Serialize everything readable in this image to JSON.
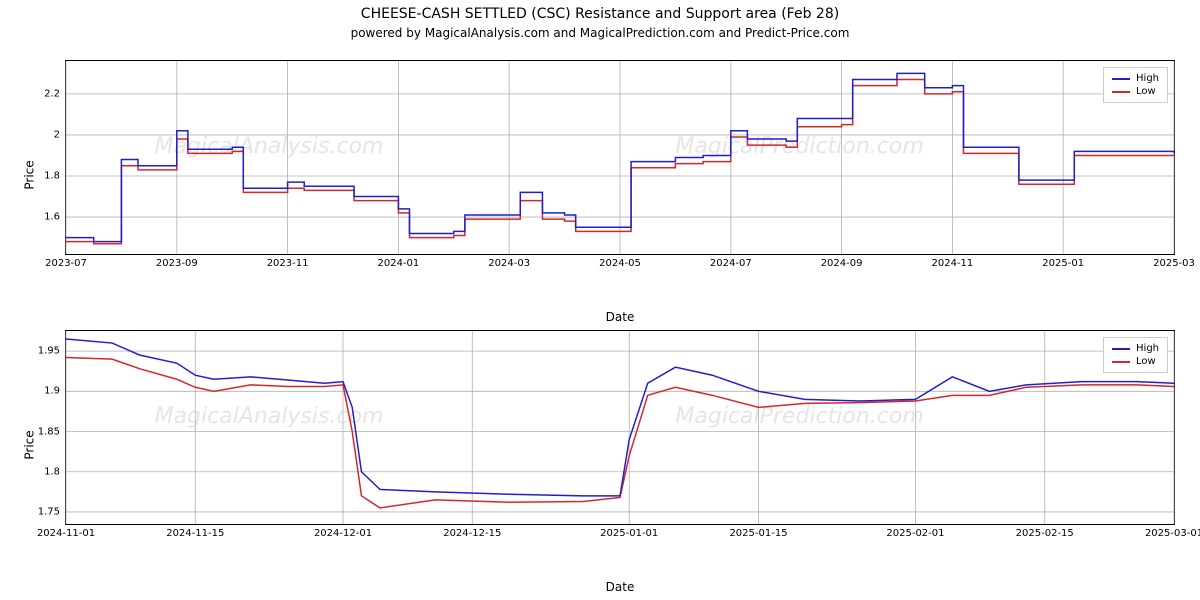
{
  "title": "CHEESE-CASH SETTLED (CSC) Resistance and Support area (Feb 28)",
  "subtitle": "powered by MagicalAnalysis.com and MagicalPrediction.com and Predict-Price.com",
  "colors": {
    "high": "#1f1fd1",
    "low": "#d62728",
    "grid": "#b0b0b0",
    "border": "#000000",
    "background": "#ffffff",
    "watermark": "#e5e5e5"
  },
  "legend": {
    "high": "High",
    "low": "Low"
  },
  "axis_labels": {
    "x": "Date",
    "y": "Price"
  },
  "watermarks": [
    "MagicalAnalysis.com",
    "MagicalPrediction.com"
  ],
  "chart1": {
    "type": "line-step",
    "x_ticks": [
      "2023-07",
      "2023-09",
      "2023-11",
      "2024-01",
      "2024-03",
      "2024-05",
      "2024-07",
      "2024-09",
      "2024-11",
      "2025-01",
      "2025-03"
    ],
    "x_tick_idx": [
      0,
      2,
      4,
      6,
      8,
      10,
      12,
      14,
      16,
      18,
      20
    ],
    "x_domain_months": 20,
    "y_ticks": [
      1.6,
      1.8,
      2.0,
      2.2
    ],
    "ylim": [
      1.42,
      2.36
    ],
    "series": {
      "high": [
        {
          "x": 0.0,
          "y": 1.5
        },
        {
          "x": 0.5,
          "y": 1.48
        },
        {
          "x": 1.0,
          "y": 1.88
        },
        {
          "x": 1.3,
          "y": 1.85
        },
        {
          "x": 1.7,
          "y": 1.85
        },
        {
          "x": 2.0,
          "y": 2.02
        },
        {
          "x": 2.2,
          "y": 1.93
        },
        {
          "x": 3.0,
          "y": 1.94
        },
        {
          "x": 3.2,
          "y": 1.74
        },
        {
          "x": 4.0,
          "y": 1.77
        },
        {
          "x": 4.3,
          "y": 1.75
        },
        {
          "x": 5.0,
          "y": 1.75
        },
        {
          "x": 5.2,
          "y": 1.7
        },
        {
          "x": 6.0,
          "y": 1.64
        },
        {
          "x": 6.2,
          "y": 1.52
        },
        {
          "x": 7.0,
          "y": 1.53
        },
        {
          "x": 7.2,
          "y": 1.61
        },
        {
          "x": 8.0,
          "y": 1.61
        },
        {
          "x": 8.2,
          "y": 1.72
        },
        {
          "x": 8.6,
          "y": 1.62
        },
        {
          "x": 9.0,
          "y": 1.61
        },
        {
          "x": 9.2,
          "y": 1.55
        },
        {
          "x": 10.0,
          "y": 1.55
        },
        {
          "x": 10.2,
          "y": 1.87
        },
        {
          "x": 11.0,
          "y": 1.89
        },
        {
          "x": 11.5,
          "y": 1.9
        },
        {
          "x": 12.0,
          "y": 2.02
        },
        {
          "x": 12.3,
          "y": 1.98
        },
        {
          "x": 13.0,
          "y": 1.97
        },
        {
          "x": 13.2,
          "y": 2.08
        },
        {
          "x": 14.0,
          "y": 2.08
        },
        {
          "x": 14.2,
          "y": 2.27
        },
        {
          "x": 15.0,
          "y": 2.3
        },
        {
          "x": 15.5,
          "y": 2.23
        },
        {
          "x": 16.0,
          "y": 2.24
        },
        {
          "x": 16.2,
          "y": 1.94
        },
        {
          "x": 17.0,
          "y": 1.94
        },
        {
          "x": 17.2,
          "y": 1.78
        },
        {
          "x": 18.0,
          "y": 1.78
        },
        {
          "x": 18.2,
          "y": 1.92
        },
        {
          "x": 20.0,
          "y": 1.91
        }
      ],
      "low": [
        {
          "x": 0.0,
          "y": 1.48
        },
        {
          "x": 0.5,
          "y": 1.47
        },
        {
          "x": 1.0,
          "y": 1.85
        },
        {
          "x": 1.3,
          "y": 1.83
        },
        {
          "x": 1.7,
          "y": 1.83
        },
        {
          "x": 2.0,
          "y": 1.98
        },
        {
          "x": 2.2,
          "y": 1.91
        },
        {
          "x": 3.0,
          "y": 1.92
        },
        {
          "x": 3.2,
          "y": 1.72
        },
        {
          "x": 4.0,
          "y": 1.74
        },
        {
          "x": 4.3,
          "y": 1.73
        },
        {
          "x": 5.0,
          "y": 1.73
        },
        {
          "x": 5.2,
          "y": 1.68
        },
        {
          "x": 6.0,
          "y": 1.62
        },
        {
          "x": 6.2,
          "y": 1.5
        },
        {
          "x": 7.0,
          "y": 1.51
        },
        {
          "x": 7.2,
          "y": 1.59
        },
        {
          "x": 8.0,
          "y": 1.59
        },
        {
          "x": 8.2,
          "y": 1.68
        },
        {
          "x": 8.6,
          "y": 1.59
        },
        {
          "x": 9.0,
          "y": 1.58
        },
        {
          "x": 9.2,
          "y": 1.53
        },
        {
          "x": 10.0,
          "y": 1.53
        },
        {
          "x": 10.2,
          "y": 1.84
        },
        {
          "x": 11.0,
          "y": 1.86
        },
        {
          "x": 11.5,
          "y": 1.87
        },
        {
          "x": 12.0,
          "y": 1.99
        },
        {
          "x": 12.3,
          "y": 1.95
        },
        {
          "x": 13.0,
          "y": 1.94
        },
        {
          "x": 13.2,
          "y": 2.04
        },
        {
          "x": 14.0,
          "y": 2.05
        },
        {
          "x": 14.2,
          "y": 2.24
        },
        {
          "x": 15.0,
          "y": 2.27
        },
        {
          "x": 15.5,
          "y": 2.2
        },
        {
          "x": 16.0,
          "y": 2.21
        },
        {
          "x": 16.2,
          "y": 1.91
        },
        {
          "x": 17.0,
          "y": 1.91
        },
        {
          "x": 17.2,
          "y": 1.76
        },
        {
          "x": 18.0,
          "y": 1.76
        },
        {
          "x": 18.2,
          "y": 1.9
        },
        {
          "x": 20.0,
          "y": 1.9
        }
      ]
    }
  },
  "chart2": {
    "type": "line",
    "x_ticks": [
      "2024-11-01",
      "2024-11-15",
      "2024-12-01",
      "2024-12-15",
      "2025-01-01",
      "2025-01-15",
      "2025-02-01",
      "2025-02-15",
      "2025-03-01"
    ],
    "x_tick_idx": [
      0,
      14,
      30,
      44,
      61,
      75,
      92,
      106,
      120
    ],
    "x_domain_days": 120,
    "y_ticks": [
      1.75,
      1.8,
      1.85,
      1.9,
      1.95
    ],
    "ylim": [
      1.735,
      1.975
    ],
    "series": {
      "high": [
        {
          "x": 0,
          "y": 1.965
        },
        {
          "x": 5,
          "y": 1.96
        },
        {
          "x": 8,
          "y": 1.945
        },
        {
          "x": 12,
          "y": 1.935
        },
        {
          "x": 14,
          "y": 1.92
        },
        {
          "x": 16,
          "y": 1.915
        },
        {
          "x": 20,
          "y": 1.918
        },
        {
          "x": 24,
          "y": 1.914
        },
        {
          "x": 28,
          "y": 1.91
        },
        {
          "x": 30,
          "y": 1.912
        },
        {
          "x": 31,
          "y": 1.88
        },
        {
          "x": 32,
          "y": 1.8
        },
        {
          "x": 34,
          "y": 1.778
        },
        {
          "x": 40,
          "y": 1.775
        },
        {
          "x": 48,
          "y": 1.772
        },
        {
          "x": 56,
          "y": 1.77
        },
        {
          "x": 60,
          "y": 1.77
        },
        {
          "x": 61,
          "y": 1.84
        },
        {
          "x": 63,
          "y": 1.91
        },
        {
          "x": 66,
          "y": 1.93
        },
        {
          "x": 70,
          "y": 1.92
        },
        {
          "x": 75,
          "y": 1.9
        },
        {
          "x": 80,
          "y": 1.89
        },
        {
          "x": 86,
          "y": 1.888
        },
        {
          "x": 92,
          "y": 1.89
        },
        {
          "x": 96,
          "y": 1.918
        },
        {
          "x": 100,
          "y": 1.9
        },
        {
          "x": 104,
          "y": 1.908
        },
        {
          "x": 110,
          "y": 1.912
        },
        {
          "x": 116,
          "y": 1.912
        },
        {
          "x": 120,
          "y": 1.91
        }
      ],
      "low": [
        {
          "x": 0,
          "y": 1.942
        },
        {
          "x": 5,
          "y": 1.94
        },
        {
          "x": 8,
          "y": 1.928
        },
        {
          "x": 12,
          "y": 1.915
        },
        {
          "x": 14,
          "y": 1.905
        },
        {
          "x": 16,
          "y": 1.9
        },
        {
          "x": 20,
          "y": 1.908
        },
        {
          "x": 24,
          "y": 1.906
        },
        {
          "x": 28,
          "y": 1.906
        },
        {
          "x": 30,
          "y": 1.908
        },
        {
          "x": 31,
          "y": 1.85
        },
        {
          "x": 32,
          "y": 1.77
        },
        {
          "x": 34,
          "y": 1.755
        },
        {
          "x": 40,
          "y": 1.765
        },
        {
          "x": 48,
          "y": 1.762
        },
        {
          "x": 56,
          "y": 1.763
        },
        {
          "x": 60,
          "y": 1.768
        },
        {
          "x": 61,
          "y": 1.82
        },
        {
          "x": 63,
          "y": 1.895
        },
        {
          "x": 66,
          "y": 1.905
        },
        {
          "x": 70,
          "y": 1.895
        },
        {
          "x": 75,
          "y": 1.88
        },
        {
          "x": 80,
          "y": 1.885
        },
        {
          "x": 86,
          "y": 1.886
        },
        {
          "x": 92,
          "y": 1.888
        },
        {
          "x": 96,
          "y": 1.895
        },
        {
          "x": 100,
          "y": 1.895
        },
        {
          "x": 104,
          "y": 1.905
        },
        {
          "x": 110,
          "y": 1.908
        },
        {
          "x": 116,
          "y": 1.908
        },
        {
          "x": 120,
          "y": 1.906
        }
      ]
    }
  },
  "typography": {
    "title_fontsize": 14,
    "subtitle_fontsize": 12,
    "axis_label_fontsize": 12,
    "tick_fontsize": 10,
    "legend_fontsize": 10,
    "watermark_fontsize": 22
  }
}
